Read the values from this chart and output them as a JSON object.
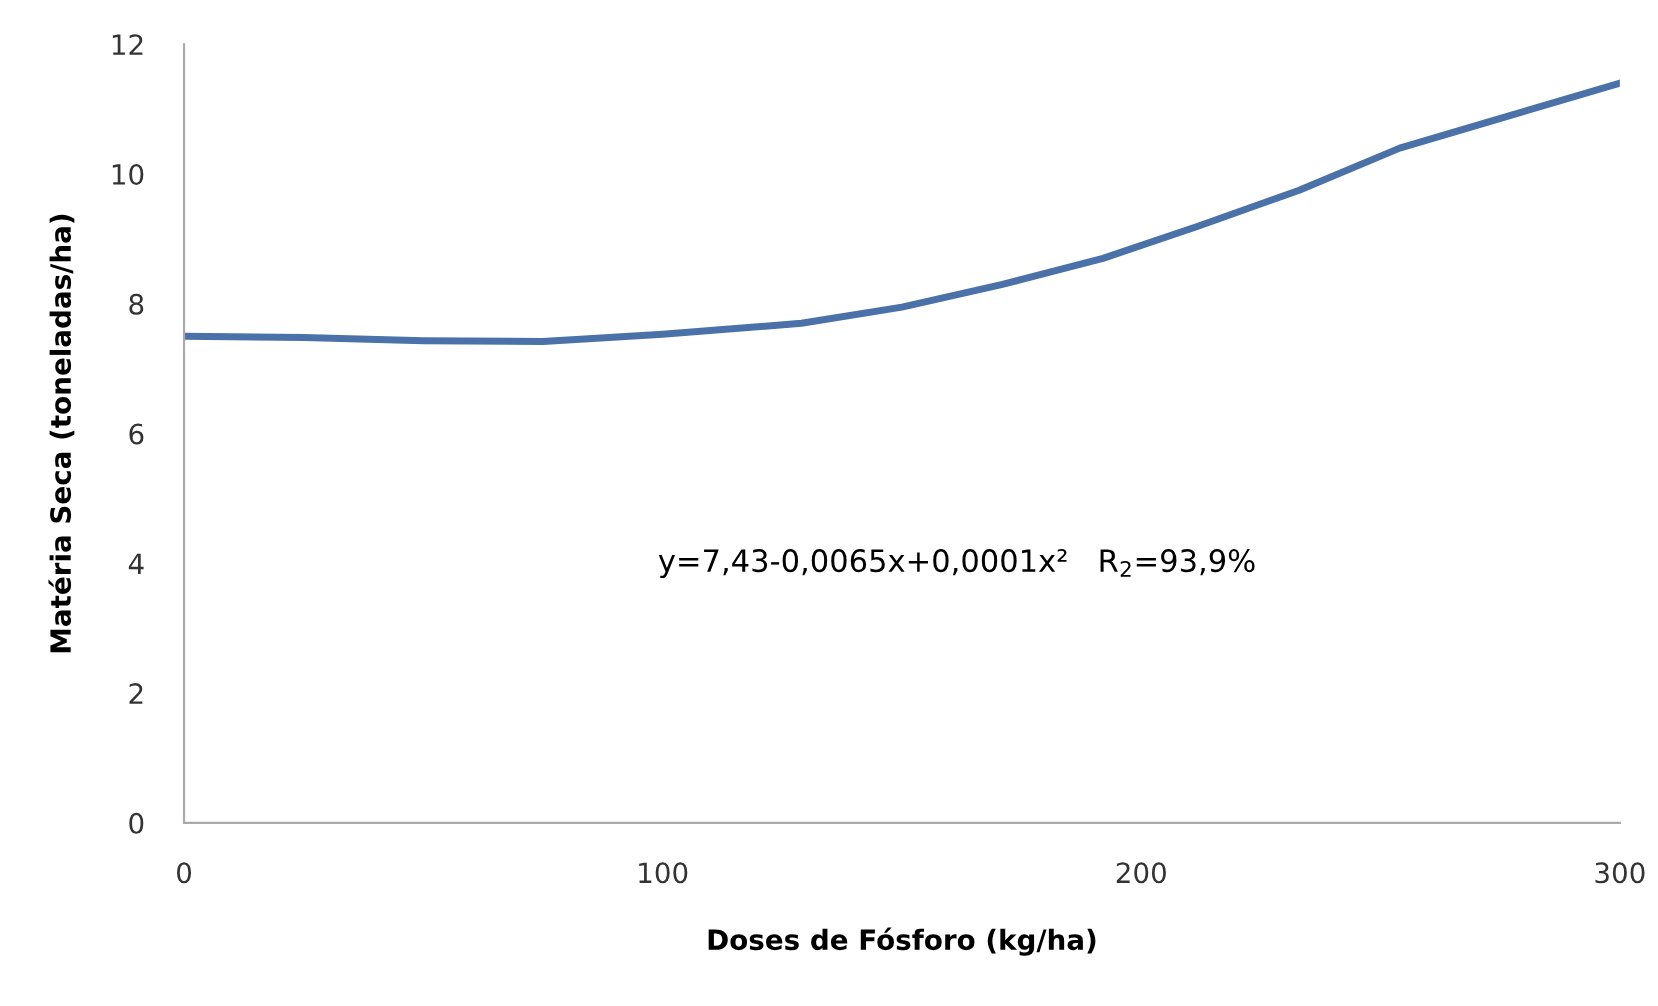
{
  "chart_data": {
    "type": "line",
    "xlabel": "Doses de Fósforo (kg/ha)",
    "ylabel": "Matéria Seca (toneladas/ha)",
    "x": [
      0,
      25,
      50,
      75,
      100,
      129,
      150,
      171,
      192,
      212,
      233,
      254,
      277,
      300
    ],
    "series": [
      {
        "color": "#4a72a8",
        "values": [
          7.5,
          7.48,
          7.43,
          7.42,
          7.53,
          7.7,
          7.95,
          8.3,
          8.7,
          9.2,
          9.75,
          10.4,
          10.9,
          11.4
        ]
      }
    ],
    "xlim": [
      0,
      300
    ],
    "xticks": [
      0,
      100,
      200,
      300
    ],
    "ylim": [
      0,
      12
    ],
    "yticks": [
      0,
      2,
      4,
      6,
      8,
      10,
      12
    ],
    "grid": false,
    "marker": "none",
    "line_style": "solid",
    "annotations": [
      "y=7,43-0,0065x+0,0001x²   R$_{2}$=93,9%"
    ]
  }
}
